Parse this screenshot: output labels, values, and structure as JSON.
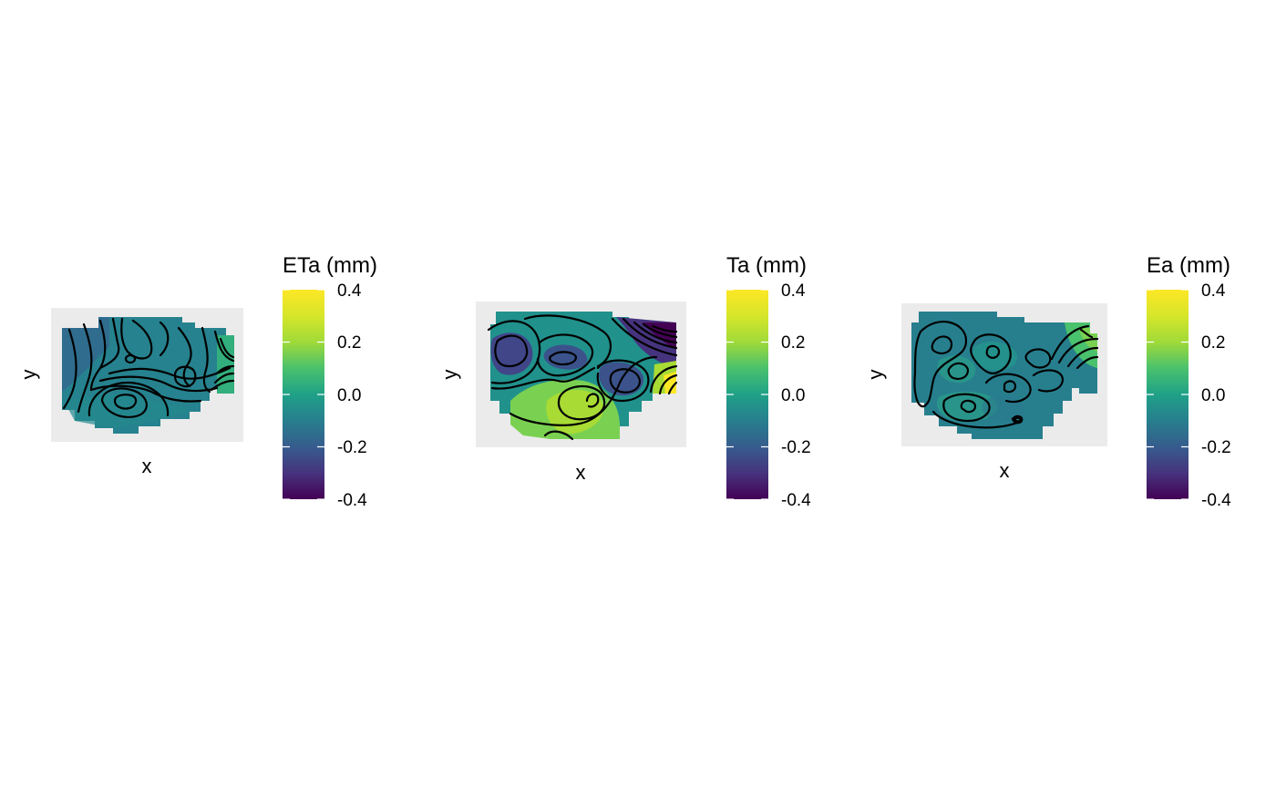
{
  "chart_data": [
    {
      "type": "heatmap",
      "legend_title": "ETa (mm)",
      "xlabel": "x",
      "ylabel": "y",
      "colorscale": "viridis",
      "value_range": [
        -0.4,
        0.4
      ],
      "legend_ticks": [
        "0.4",
        "0.2",
        "0.0",
        "-0.2",
        "-0.4"
      ],
      "legend_tick_values": [
        0.4,
        0.2,
        0.0,
        -0.2,
        -0.4
      ],
      "contours": true,
      "grid": false,
      "legend_position": "right",
      "panel_background": "#ebebeb"
    },
    {
      "type": "heatmap",
      "legend_title": "Ta (mm)",
      "xlabel": "x",
      "ylabel": "y",
      "colorscale": "viridis",
      "value_range": [
        -0.4,
        0.4
      ],
      "legend_ticks": [
        "0.4",
        "0.2",
        "0.0",
        "-0.2",
        "-0.4"
      ],
      "legend_tick_values": [
        0.4,
        0.2,
        0.0,
        -0.2,
        -0.4
      ],
      "contours": true,
      "grid": false,
      "legend_position": "right",
      "panel_background": "#ebebeb"
    },
    {
      "type": "heatmap",
      "legend_title": "Ea (mm)",
      "xlabel": "x",
      "ylabel": "y",
      "colorscale": "viridis",
      "value_range": [
        -0.4,
        0.4
      ],
      "legend_ticks": [
        "0.4",
        "0.2",
        "0.0",
        "-0.2",
        "-0.4"
      ],
      "legend_tick_values": [
        0.4,
        0.2,
        0.0,
        -0.2,
        -0.4
      ],
      "contours": true,
      "grid": false,
      "legend_position": "right",
      "panel_background": "#ebebeb"
    }
  ]
}
